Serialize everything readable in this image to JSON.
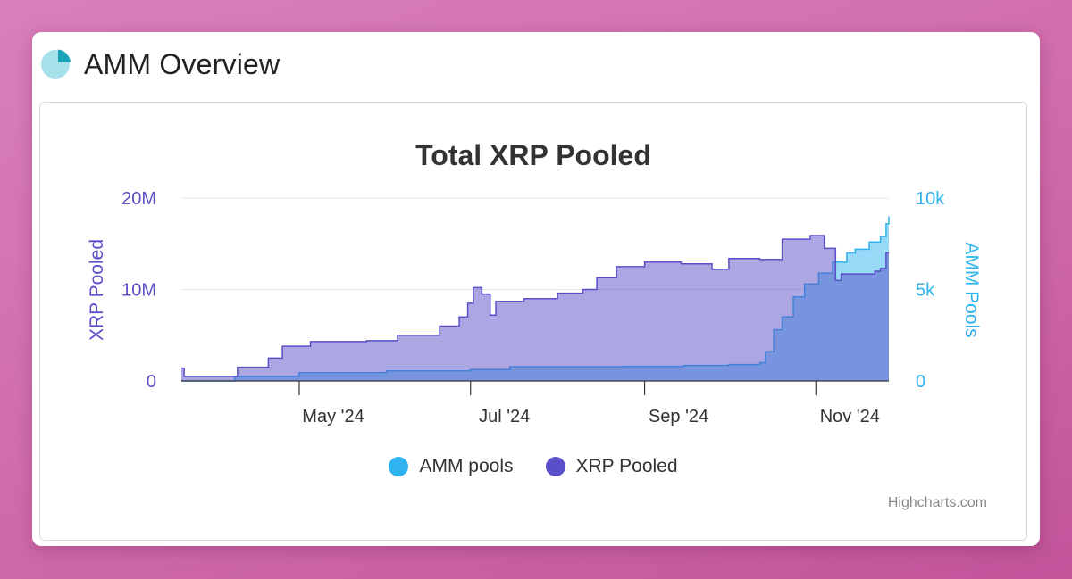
{
  "page": {
    "title": "AMM Overview",
    "header_icon": "pie-chart-icon"
  },
  "chart_data": {
    "type": "area",
    "title": "Total XRP Pooled",
    "x_axis": {
      "type": "datetime",
      "ticks": [
        "May '24",
        "Jul '24",
        "Sep '24",
        "Nov '24"
      ],
      "range": [
        "2024-03-20",
        "2024-11-27"
      ]
    },
    "y_axes": [
      {
        "title": "XRP Pooled",
        "side": "left",
        "min": 0,
        "max": 20000000,
        "ticks": [
          "0",
          "10M",
          "20M"
        ],
        "color": "#5a4fc8"
      },
      {
        "title": "AMM Pools",
        "side": "right",
        "min": 0,
        "max": 10000,
        "ticks": [
          "0",
          "5k",
          "10k"
        ],
        "color": "#2fb3ef"
      }
    ],
    "grid": true,
    "legend_position": "bottom-center",
    "series": [
      {
        "name": "AMM pools",
        "axis": "right",
        "color": "#2fb3ef",
        "step": true,
        "points": [
          [
            "2024-03-20",
            0
          ],
          [
            "2024-04-08",
            250
          ],
          [
            "2024-05-01",
            450
          ],
          [
            "2024-06-01",
            550
          ],
          [
            "2024-07-01",
            620
          ],
          [
            "2024-07-15",
            780
          ],
          [
            "2024-08-01",
            780
          ],
          [
            "2024-08-25",
            800
          ],
          [
            "2024-09-15",
            850
          ],
          [
            "2024-10-01",
            900
          ],
          [
            "2024-10-12",
            1000
          ],
          [
            "2024-10-14",
            1600
          ],
          [
            "2024-10-17",
            2800
          ],
          [
            "2024-10-20",
            3500
          ],
          [
            "2024-10-24",
            4600
          ],
          [
            "2024-10-28",
            5300
          ],
          [
            "2024-11-02",
            5900
          ],
          [
            "2024-11-07",
            6500
          ],
          [
            "2024-11-12",
            7000
          ],
          [
            "2024-11-15",
            7200
          ],
          [
            "2024-11-20",
            7600
          ],
          [
            "2024-11-24",
            7900
          ],
          [
            "2024-11-26",
            8600
          ],
          [
            "2024-11-27",
            9000
          ]
        ]
      },
      {
        "name": "XRP Pooled",
        "axis": "left",
        "color": "#5a4fc8",
        "step": true,
        "points": [
          [
            "2024-03-20",
            1400000
          ],
          [
            "2024-03-21",
            500000
          ],
          [
            "2024-04-08",
            500000
          ],
          [
            "2024-04-09",
            1500000
          ],
          [
            "2024-04-20",
            2500000
          ],
          [
            "2024-04-25",
            3800000
          ],
          [
            "2024-05-05",
            4300000
          ],
          [
            "2024-05-25",
            4400000
          ],
          [
            "2024-06-05",
            5000000
          ],
          [
            "2024-06-20",
            6000000
          ],
          [
            "2024-06-27",
            7000000
          ],
          [
            "2024-06-30",
            8500000
          ],
          [
            "2024-07-02",
            10200000
          ],
          [
            "2024-07-05",
            9500000
          ],
          [
            "2024-07-08",
            7200000
          ],
          [
            "2024-07-10",
            8700000
          ],
          [
            "2024-07-20",
            9000000
          ],
          [
            "2024-08-01",
            9600000
          ],
          [
            "2024-08-10",
            10000000
          ],
          [
            "2024-08-15",
            11300000
          ],
          [
            "2024-08-22",
            12500000
          ],
          [
            "2024-09-01",
            13000000
          ],
          [
            "2024-09-14",
            12800000
          ],
          [
            "2024-09-25",
            12200000
          ],
          [
            "2024-10-01",
            13400000
          ],
          [
            "2024-10-12",
            13300000
          ],
          [
            "2024-10-20",
            15500000
          ],
          [
            "2024-10-30",
            15900000
          ],
          [
            "2024-11-04",
            14500000
          ],
          [
            "2024-11-08",
            11000000
          ],
          [
            "2024-11-10",
            11700000
          ],
          [
            "2024-11-22",
            12000000
          ],
          [
            "2024-11-24",
            12300000
          ],
          [
            "2024-11-26",
            14000000
          ],
          [
            "2024-11-27",
            14000000
          ]
        ]
      }
    ]
  },
  "legend": {
    "items": [
      {
        "label": "AMM pools",
        "color": "#2fb3ef"
      },
      {
        "label": "XRP Pooled",
        "color": "#5a4fc8"
      }
    ]
  },
  "credits": {
    "label": "Highcharts.com"
  }
}
